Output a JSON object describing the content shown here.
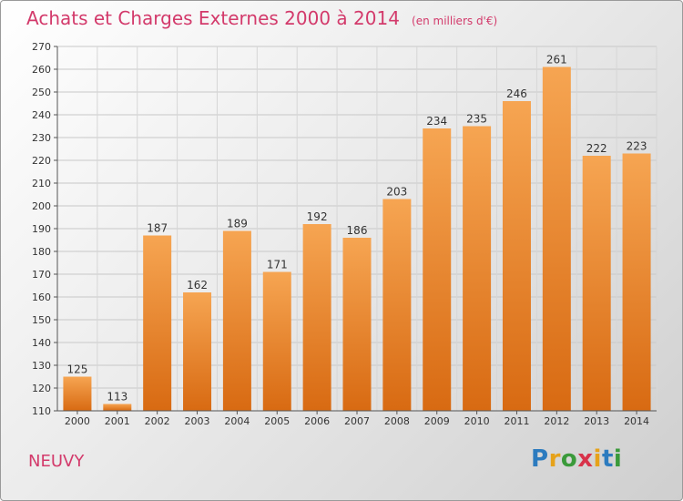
{
  "title": "Achats et Charges Externes 2000 à 2014",
  "subtitle": "(en milliers d'€)",
  "place": "NEUVY",
  "logo": {
    "letters": [
      "P",
      "r",
      "o",
      "x",
      "i",
      "t",
      "i"
    ],
    "colors": [
      "#2c7bbf",
      "#e6a21a",
      "#3a9a3a",
      "#d8324a",
      "#e6a21a",
      "#2c7bbf",
      "#3a9a3a"
    ]
  },
  "chart_data": {
    "type": "bar",
    "title": "Achats et Charges Externes 2000 à 2014",
    "subtitle": "(en milliers d'€)",
    "categories": [
      "2000",
      "2001",
      "2002",
      "2003",
      "2004",
      "2005",
      "2006",
      "2007",
      "2008",
      "2009",
      "2010",
      "2011",
      "2012",
      "2013",
      "2014"
    ],
    "values": [
      125,
      113,
      187,
      162,
      189,
      171,
      192,
      186,
      203,
      234,
      235,
      246,
      261,
      222,
      223
    ],
    "ylim": [
      110,
      270
    ],
    "yticks": [
      110,
      120,
      130,
      140,
      150,
      160,
      170,
      180,
      190,
      200,
      210,
      220,
      230,
      240,
      250,
      260,
      270
    ],
    "grid": true,
    "bar_color_top": "#f6a552",
    "bar_color_bottom": "#d86a12",
    "legend": "none"
  }
}
